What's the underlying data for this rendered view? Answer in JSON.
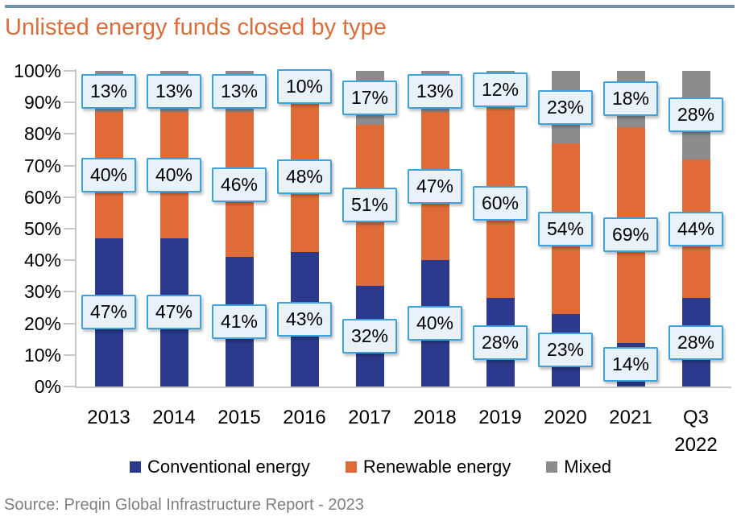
{
  "title": "Unlisted energy funds closed by type",
  "source": "Source: Preqin Global Infrastructure Report - 2023",
  "colors": {
    "top_rule": "#6E94A6",
    "title": "#D96E3C",
    "axis": "#C8C8C8",
    "label_fill": "#E9F2FB",
    "label_border": "#3FA2DC",
    "source": "#7F7F7F"
  },
  "chart_data": {
    "type": "bar",
    "stacked": true,
    "title": "Unlisted energy funds closed by type",
    "categories": [
      "2013",
      "2014",
      "2015",
      "2016",
      "2017",
      "2018",
      "2019",
      "2020",
      "2021",
      "Q3 2022"
    ],
    "series": [
      {
        "name": "Conventional energy",
        "color": "#2B3A8D",
        "values": [
          47,
          47,
          41,
          43,
          32,
          40,
          28,
          23,
          14,
          28
        ]
      },
      {
        "name": "Renewable energy",
        "color": "#E16B38",
        "values": [
          40,
          40,
          46,
          48,
          51,
          47,
          60,
          54,
          69,
          44
        ]
      },
      {
        "name": "Mixed",
        "color": "#8C8C8C",
        "values": [
          13,
          13,
          13,
          10,
          17,
          13,
          12,
          23,
          18,
          28
        ]
      }
    ],
    "xlabel": "",
    "ylabel": "",
    "ylim": [
      0,
      100
    ],
    "yticks": [
      "0%",
      "10%",
      "20%",
      "30%",
      "40%",
      "50%",
      "60%",
      "70%",
      "80%",
      "90%",
      "100%"
    ],
    "grid": false,
    "legend_position": "bottom",
    "data_labels": true,
    "data_label_suffix": "%"
  }
}
